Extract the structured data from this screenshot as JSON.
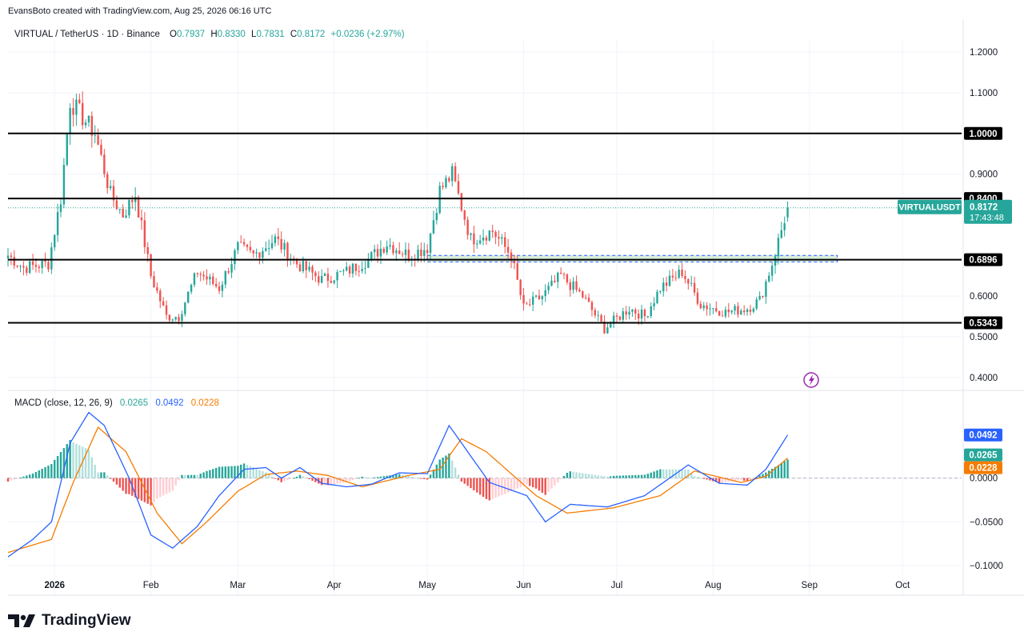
{
  "header": {
    "credit": "EvansBoto created with TradingView.com, Aug 25, 2026 06:16 UTC"
  },
  "legend": {
    "symbol": "VIRTUAL / TetherUS · 1D · Binance",
    "o_label": "O",
    "o_value": "0.7937",
    "h_label": "H",
    "h_value": "0.8330",
    "l_label": "L",
    "l_value": "0.7831",
    "c_label": "C",
    "c_value": "0.8172",
    "change": "+0.0236 (+2.97%)"
  },
  "macd_legend": {
    "title": "MACD (close, 12, 26, 9)",
    "hist": "0.0265",
    "macd": "0.0492",
    "signal": "0.0228"
  },
  "logo": {
    "text": "TradingView"
  },
  "colors": {
    "up": "#26a69a",
    "down": "#ef5350",
    "macd": "#2962ff",
    "signal": "#f57c00",
    "text": "#131722",
    "grid": "#f0f3fa"
  },
  "chart_data": [
    {
      "type": "candlestick",
      "symbol": "VIRTUALUSDT",
      "interval": "1D",
      "exchange": "Binance",
      "ylim": [
        0.37,
        1.22
      ],
      "yticks": [
        "1.2000",
        "1.1000",
        "0.9000",
        "0.6000",
        "0.5000",
        "0.4000"
      ],
      "xticks": [
        "2026",
        "Feb",
        "Mar",
        "Apr",
        "May",
        "Jun",
        "Jul",
        "Aug",
        "Sep",
        "Oct"
      ],
      "anchors": [
        [
          "2025-12-17",
          0.7
        ],
        [
          "2025-12-22",
          0.67
        ],
        [
          "2025-12-30",
          0.68
        ],
        [
          "2026-01-03",
          0.84
        ],
        [
          "2026-01-06",
          1.08
        ],
        [
          "2026-01-09",
          1.05
        ],
        [
          "2026-01-14",
          1.0
        ],
        [
          "2026-01-19",
          0.85
        ],
        [
          "2026-01-23",
          0.8
        ],
        [
          "2026-01-27",
          0.85
        ],
        [
          "2026-02-01",
          0.65
        ],
        [
          "2026-02-06",
          0.55
        ],
        [
          "2026-02-10",
          0.55
        ],
        [
          "2026-02-16",
          0.66
        ],
        [
          "2026-02-23",
          0.62
        ],
        [
          "2026-03-01",
          0.72
        ],
        [
          "2026-03-06",
          0.7
        ],
        [
          "2026-03-13",
          0.74
        ],
        [
          "2026-03-20",
          0.68
        ],
        [
          "2026-03-28",
          0.64
        ],
        [
          "2026-04-05",
          0.66
        ],
        [
          "2026-04-12",
          0.69
        ],
        [
          "2026-04-18",
          0.73
        ],
        [
          "2026-04-25",
          0.7
        ],
        [
          "2026-05-01",
          0.72
        ],
        [
          "2026-05-05",
          0.86
        ],
        [
          "2026-05-09",
          0.9
        ],
        [
          "2026-05-15",
          0.74
        ],
        [
          "2026-05-22",
          0.76
        ],
        [
          "2026-05-28",
          0.7
        ],
        [
          "2026-06-01",
          0.57
        ],
        [
          "2026-06-07",
          0.6
        ],
        [
          "2026-06-13",
          0.65
        ],
        [
          "2026-06-20",
          0.6
        ],
        [
          "2026-06-27",
          0.52
        ],
        [
          "2026-07-05",
          0.57
        ],
        [
          "2026-07-10",
          0.55
        ],
        [
          "2026-07-15",
          0.62
        ],
        [
          "2026-07-22",
          0.66
        ],
        [
          "2026-07-28",
          0.58
        ],
        [
          "2026-08-05",
          0.56
        ],
        [
          "2026-08-12",
          0.57
        ],
        [
          "2026-08-16",
          0.59
        ],
        [
          "2026-08-20",
          0.68
        ],
        [
          "2026-08-25",
          0.8172
        ]
      ],
      "last": {
        "open": 0.7937,
        "high": 0.833,
        "low": 0.7831,
        "close": 0.8172,
        "date": "2026-08-25"
      },
      "levels": [
        {
          "price": 1.0,
          "label": "1.0000"
        },
        {
          "price": 0.84,
          "label": "0.8400"
        },
        {
          "price": 0.6896,
          "label": "0.6896"
        },
        {
          "price": 0.5343,
          "label": "0.5343"
        }
      ],
      "zone": {
        "start": "2026-05-01",
        "end": "2026-09-10",
        "low": 0.684,
        "high": 0.7
      },
      "price_tag": {
        "label": "VIRTUALUSDT",
        "value": "0.8172",
        "countdown": "17:43:48"
      }
    },
    {
      "type": "macd",
      "params": "close, 12, 26, 9",
      "ylim": [
        -0.11,
        0.08
      ],
      "yticks": [
        "0.0000",
        "−0.0500",
        "−0.1000"
      ],
      "macd_anchors": [
        [
          "2025-12-17",
          -0.09
        ],
        [
          "2025-12-25",
          -0.07
        ],
        [
          "2025-12-31",
          -0.05
        ],
        [
          "2026-01-06",
          0.04
        ],
        [
          "2026-01-12",
          0.075
        ],
        [
          "2026-01-17",
          0.06
        ],
        [
          "2026-01-25",
          0.0
        ],
        [
          "2026-02-01",
          -0.065
        ],
        [
          "2026-02-08",
          -0.08
        ],
        [
          "2026-02-16",
          -0.055
        ],
        [
          "2026-02-23",
          -0.02
        ],
        [
          "2026-03-03",
          0.01
        ],
        [
          "2026-03-10",
          0.012
        ],
        [
          "2026-03-15",
          0.0
        ],
        [
          "2026-03-21",
          0.012
        ],
        [
          "2026-03-28",
          -0.006
        ],
        [
          "2026-04-05",
          -0.01
        ],
        [
          "2026-04-13",
          -0.007
        ],
        [
          "2026-04-22",
          0.006
        ],
        [
          "2026-05-01",
          0.005
        ],
        [
          "2026-05-08",
          0.06
        ],
        [
          "2026-05-14",
          0.03
        ],
        [
          "2026-05-21",
          -0.005
        ],
        [
          "2026-06-02",
          -0.02
        ],
        [
          "2026-06-08",
          -0.05
        ],
        [
          "2026-06-16",
          -0.03
        ],
        [
          "2026-06-28",
          -0.033
        ],
        [
          "2026-07-10",
          -0.02
        ],
        [
          "2026-07-24",
          0.015
        ],
        [
          "2026-08-03",
          -0.006
        ],
        [
          "2026-08-12",
          -0.008
        ],
        [
          "2026-08-18",
          0.01
        ],
        [
          "2026-08-25",
          0.0492
        ]
      ],
      "signal_anchors": [
        [
          "2025-12-17",
          -0.085
        ],
        [
          "2025-12-31",
          -0.07
        ],
        [
          "2026-01-07",
          -0.005
        ],
        [
          "2026-01-15",
          0.058
        ],
        [
          "2026-01-24",
          0.03
        ],
        [
          "2026-02-03",
          -0.04
        ],
        [
          "2026-02-11",
          -0.075
        ],
        [
          "2026-02-19",
          -0.05
        ],
        [
          "2026-03-01",
          -0.015
        ],
        [
          "2026-03-10",
          0.004
        ],
        [
          "2026-03-20",
          0.008
        ],
        [
          "2026-03-30",
          0.003
        ],
        [
          "2026-04-10",
          -0.01
        ],
        [
          "2026-04-25",
          0.003
        ],
        [
          "2026-05-05",
          0.01
        ],
        [
          "2026-05-12",
          0.045
        ],
        [
          "2026-05-20",
          0.03
        ],
        [
          "2026-06-05",
          -0.02
        ],
        [
          "2026-06-15",
          -0.04
        ],
        [
          "2026-06-30",
          -0.034
        ],
        [
          "2026-07-15",
          -0.02
        ],
        [
          "2026-07-26",
          0.008
        ],
        [
          "2026-08-10",
          -0.005
        ],
        [
          "2026-08-18",
          0.002
        ],
        [
          "2026-08-25",
          0.0228
        ]
      ],
      "last": {
        "histogram": 0.0265,
        "macd": 0.0492,
        "signal": 0.0228
      }
    }
  ]
}
